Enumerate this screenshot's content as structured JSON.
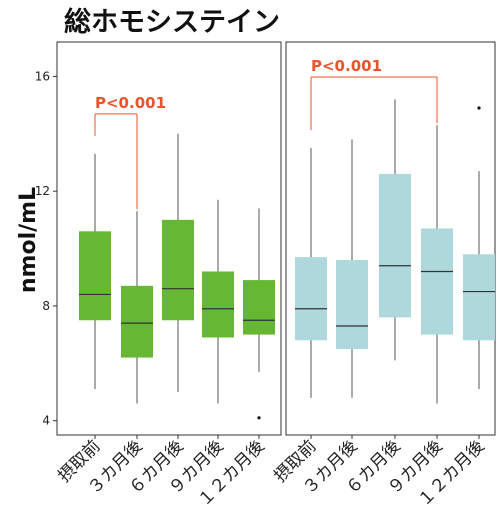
{
  "chart_data": {
    "type": "box",
    "title": "総ホモシステイン",
    "ylabel": "nmol/mL",
    "xlabel": "",
    "ylim": [
      3.5,
      17.2
    ],
    "yticks": [
      4,
      8,
      12,
      16
    ],
    "grid": false,
    "categories": [
      "摂取前",
      "３カ月後",
      "６カ月後",
      "９カ月後",
      "１２カ月後"
    ],
    "panels": [
      {
        "color": "#66b832",
        "boxes": [
          {
            "whisker_low": 5.1,
            "q1": 7.5,
            "median": 8.4,
            "q3": 10.6,
            "whisker_high": 13.3,
            "outliers": []
          },
          {
            "whisker_low": 4.6,
            "q1": 6.2,
            "median": 7.4,
            "q3": 8.7,
            "whisker_high": 11.3,
            "outliers": []
          },
          {
            "whisker_low": 5.0,
            "q1": 7.5,
            "median": 8.6,
            "q3": 11.0,
            "whisker_high": 14.0,
            "outliers": []
          },
          {
            "whisker_low": 4.6,
            "q1": 6.9,
            "median": 7.9,
            "q3": 9.2,
            "whisker_high": 11.7,
            "outliers": []
          },
          {
            "whisker_low": 5.7,
            "q1": 7.0,
            "median": 7.5,
            "q3": 8.9,
            "whisker_high": 11.4,
            "outliers": [
              4.1
            ]
          }
        ],
        "annotation": {
          "text": "P<0.001",
          "from": 0,
          "to": 1
        }
      },
      {
        "color": "#aed8dc",
        "boxes": [
          {
            "whisker_low": 4.8,
            "q1": 6.8,
            "median": 7.9,
            "q3": 9.7,
            "whisker_high": 13.5,
            "outliers": []
          },
          {
            "whisker_low": 4.8,
            "q1": 6.5,
            "median": 7.3,
            "q3": 9.6,
            "whisker_high": 13.8,
            "outliers": []
          },
          {
            "whisker_low": 6.1,
            "q1": 7.6,
            "median": 9.4,
            "q3": 12.6,
            "whisker_high": 15.2,
            "outliers": []
          },
          {
            "whisker_low": 4.6,
            "q1": 7.0,
            "median": 9.2,
            "q3": 10.7,
            "whisker_high": 14.3,
            "outliers": []
          },
          {
            "whisker_low": 5.1,
            "q1": 6.8,
            "median": 8.5,
            "q3": 9.8,
            "whisker_high": 12.7,
            "outliers": [
              14.9
            ]
          }
        ],
        "annotation": {
          "text": "P<0.001",
          "from": 0,
          "to": 3
        }
      }
    ],
    "annotation_color": "#e8552c"
  }
}
